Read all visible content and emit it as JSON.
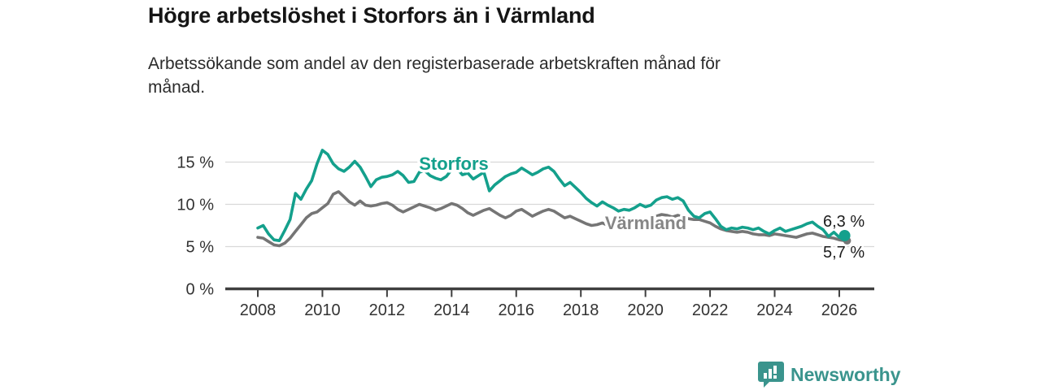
{
  "header": {
    "title": "Högre arbetslöshet i Storfors än i Värmland",
    "subtitle_lines": [
      "Arbetssökande som andel av den registerbaserade arbetskraften månad för",
      "månad."
    ]
  },
  "footer": {
    "brand": "Newsworthy",
    "logo_icon": "bar-chart-speech-bubble-icon"
  },
  "colors": {
    "storfors_line": "#14a08c",
    "varmland_line": "#757575",
    "varmland_label": "#868686",
    "grid": "#d9d9d9",
    "axis": "#3f3f3f",
    "tick_text": "#333333",
    "value_text": "#1d1d1d",
    "brand_teal": "#3a948d",
    "background": "#ffffff"
  },
  "chart_data": {
    "type": "line",
    "title": "Högre arbetslöshet i Storfors än i Värmland",
    "subtitle": "Arbetssökande som andel av den registerbaserade arbetskraften månad för månad.",
    "unit": "%",
    "x_start_year": 2008.0,
    "x_step_years": 0.166667,
    "xlim": [
      2007.0,
      2027.1
    ],
    "ylim": [
      0,
      17.5
    ],
    "grid": "horizontal",
    "legend_position": "inline-labels",
    "yticks": [
      {
        "v": 0,
        "label": "0 %"
      },
      {
        "v": 5,
        "label": "5 %"
      },
      {
        "v": 10,
        "label": "10 %"
      },
      {
        "v": 15,
        "label": "15 %"
      }
    ],
    "xticks": [
      {
        "v": 2008,
        "label": "2008"
      },
      {
        "v": 2010,
        "label": "2010"
      },
      {
        "v": 2012,
        "label": "2012"
      },
      {
        "v": 2014,
        "label": "2014"
      },
      {
        "v": 2016,
        "label": "2016"
      },
      {
        "v": 2018,
        "label": "2018"
      },
      {
        "v": 2020,
        "label": "2020"
      },
      {
        "v": 2022,
        "label": "2022"
      },
      {
        "v": 2024,
        "label": "2024"
      },
      {
        "v": 2026,
        "label": "2026"
      }
    ],
    "series": [
      {
        "name": "Storfors",
        "color": "#14a08c",
        "end_label": "6,3 %",
        "end_value": 6.3,
        "values": [
          7.2,
          7.5,
          6.5,
          5.8,
          5.7,
          6.9,
          8.2,
          11.3,
          10.6,
          11.8,
          12.8,
          14.8,
          16.4,
          15.9,
          14.8,
          14.2,
          13.9,
          14.4,
          15.1,
          14.4,
          13.3,
          12.1,
          12.9,
          13.2,
          13.3,
          13.5,
          13.9,
          13.4,
          12.6,
          12.7,
          13.8,
          14.0,
          13.4,
          13.1,
          12.9,
          13.3,
          14.1,
          14.2,
          13.5,
          13.7,
          13.0,
          13.4,
          13.8,
          11.6,
          12.3,
          12.8,
          13.3,
          13.6,
          13.8,
          14.3,
          13.9,
          13.5,
          13.8,
          14.2,
          14.4,
          13.9,
          13.0,
          12.2,
          12.6,
          12.0,
          11.4,
          10.7,
          10.2,
          9.8,
          10.3,
          9.9,
          9.6,
          9.2,
          9.4,
          9.3,
          9.6,
          10.0,
          9.7,
          9.9,
          10.5,
          10.8,
          10.9,
          10.6,
          10.8,
          10.4,
          9.3,
          8.6,
          8.4,
          8.9,
          9.1,
          8.3,
          7.4,
          7.0,
          7.2,
          7.1,
          7.3,
          7.2,
          7.0,
          7.2,
          6.8,
          6.5,
          6.9,
          7.2,
          6.8,
          7.0,
          7.2,
          7.4,
          7.7,
          7.9,
          7.4,
          7.0,
          6.2,
          6.7,
          6.1,
          6.3
        ]
      },
      {
        "name": "Värmland",
        "color": "#757575",
        "end_label": "5,7 %",
        "end_value": 5.7,
        "values": [
          6.1,
          6.0,
          5.6,
          5.2,
          5.1,
          5.4,
          6.0,
          6.8,
          7.6,
          8.4,
          8.9,
          9.1,
          9.6,
          10.1,
          11.2,
          11.5,
          10.9,
          10.3,
          9.9,
          10.4,
          9.9,
          9.8,
          9.9,
          10.1,
          10.2,
          9.9,
          9.4,
          9.1,
          9.4,
          9.7,
          10.0,
          9.8,
          9.6,
          9.3,
          9.5,
          9.8,
          10.1,
          9.9,
          9.5,
          9.0,
          8.7,
          9.0,
          9.3,
          9.5,
          9.1,
          8.7,
          8.4,
          8.7,
          9.2,
          9.4,
          9.0,
          8.6,
          8.9,
          9.2,
          9.4,
          9.2,
          8.8,
          8.4,
          8.6,
          8.3,
          8.0,
          7.7,
          7.5,
          7.6,
          7.8,
          7.5,
          7.3,
          7.2,
          7.3,
          7.2,
          7.4,
          7.6,
          7.7,
          8.0,
          8.6,
          8.8,
          8.7,
          8.5,
          8.7,
          8.5,
          8.3,
          8.2,
          8.2,
          8.0,
          7.8,
          7.4,
          7.1,
          6.9,
          6.8,
          6.7,
          6.8,
          6.7,
          6.5,
          6.4,
          6.4,
          6.3,
          6.5,
          6.4,
          6.3,
          6.2,
          6.1,
          6.3,
          6.5,
          6.6,
          6.4,
          6.2,
          6.1,
          6.0,
          5.8,
          5.7
        ]
      }
    ]
  }
}
